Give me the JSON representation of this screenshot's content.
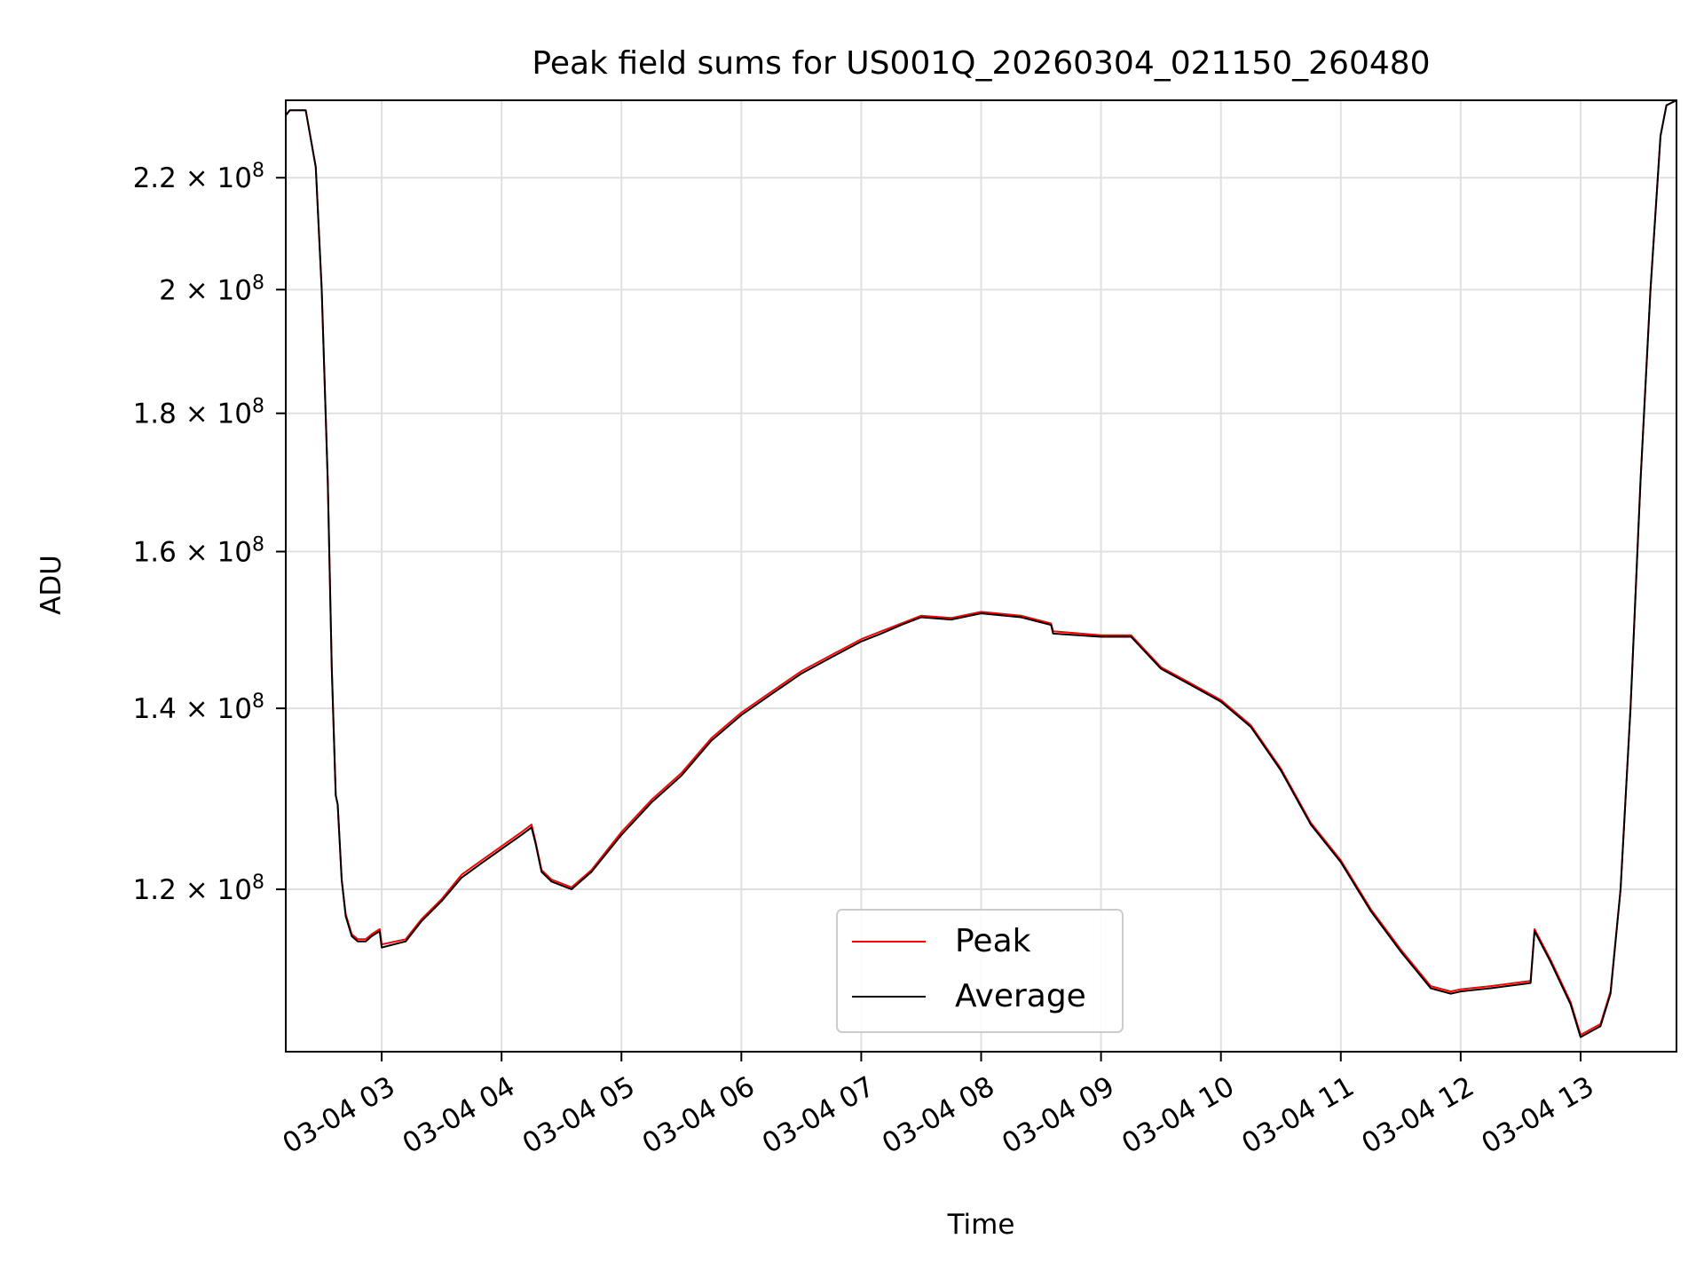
{
  "chart_data": {
    "type": "line",
    "title": "Peak field sums for US001Q_20260304_021150_260480",
    "xlabel": "Time",
    "ylabel": "ADU",
    "y_scale": "log",
    "grid": true,
    "legend_position": "lower center",
    "xlim": [
      "2026-03-04 02:12",
      "2026-03-04 13:48"
    ],
    "ylim": [
      104500000,
      235000000
    ],
    "x_ticks": [
      {
        "t": "2026-03-04 03:00",
        "label": "03-04 03"
      },
      {
        "t": "2026-03-04 04:00",
        "label": "03-04 04"
      },
      {
        "t": "2026-03-04 05:00",
        "label": "03-04 05"
      },
      {
        "t": "2026-03-04 06:00",
        "label": "03-04 06"
      },
      {
        "t": "2026-03-04 07:00",
        "label": "03-04 07"
      },
      {
        "t": "2026-03-04 08:00",
        "label": "03-04 08"
      },
      {
        "t": "2026-03-04 09:00",
        "label": "03-04 09"
      },
      {
        "t": "2026-03-04 10:00",
        "label": "03-04 10"
      },
      {
        "t": "2026-03-04 11:00",
        "label": "03-04 11"
      },
      {
        "t": "2026-03-04 12:00",
        "label": "03-04 12"
      },
      {
        "t": "2026-03-04 13:00",
        "label": "03-04 13"
      }
    ],
    "y_ticks": [
      {
        "value": 120000000,
        "mantissa": "1.2"
      },
      {
        "value": 140000000,
        "mantissa": "1.4"
      },
      {
        "value": 160000000,
        "mantissa": "1.6"
      },
      {
        "value": 180000000,
        "mantissa": "1.8"
      },
      {
        "value": 200000000,
        "mantissa": "2"
      },
      {
        "value": 220000000,
        "mantissa": "2.2"
      }
    ],
    "y_tick_base": "10",
    "y_tick_exponent": "8",
    "series": [
      {
        "name": "Peak",
        "color": "#ff0000",
        "x": [
          "2026-03-04 02:12",
          "2026-03-04 02:14",
          "2026-03-04 02:22",
          "2026-03-04 02:27",
          "2026-03-04 02:30",
          "2026-03-04 02:33",
          "2026-03-04 02:35",
          "2026-03-04 02:37",
          "2026-03-04 02:38",
          "2026-03-04 02:40",
          "2026-03-04 02:42",
          "2026-03-04 02:45",
          "2026-03-04 02:48",
          "2026-03-04 02:52",
          "2026-03-04 02:55",
          "2026-03-04 02:59",
          "2026-03-04 03:00",
          "2026-03-04 03:12",
          "2026-03-04 03:20",
          "2026-03-04 03:30",
          "2026-03-04 03:40",
          "2026-03-04 03:50",
          "2026-03-04 04:00",
          "2026-03-04 04:10",
          "2026-03-04 04:15",
          "2026-03-04 04:17",
          "2026-03-04 04:20",
          "2026-03-04 04:25",
          "2026-03-04 04:35",
          "2026-03-04 04:45",
          "2026-03-04 05:00",
          "2026-03-04 05:15",
          "2026-03-04 05:30",
          "2026-03-04 05:45",
          "2026-03-04 06:00",
          "2026-03-04 06:15",
          "2026-03-04 06:30",
          "2026-03-04 06:45",
          "2026-03-04 07:00",
          "2026-03-04 07:10",
          "2026-03-04 07:20",
          "2026-03-04 07:30",
          "2026-03-04 07:45",
          "2026-03-04 08:00",
          "2026-03-04 08:20",
          "2026-03-04 08:35",
          "2026-03-04 08:36",
          "2026-03-04 09:00",
          "2026-03-04 09:15",
          "2026-03-04 09:30",
          "2026-03-04 09:45",
          "2026-03-04 10:00",
          "2026-03-04 10:15",
          "2026-03-04 10:30",
          "2026-03-04 10:45",
          "2026-03-04 11:00",
          "2026-03-04 11:15",
          "2026-03-04 11:30",
          "2026-03-04 11:45",
          "2026-03-04 11:55",
          "2026-03-04 12:00",
          "2026-03-04 12:15",
          "2026-03-04 12:35",
          "2026-03-04 12:37",
          "2026-03-04 12:45",
          "2026-03-04 12:55",
          "2026-03-04 13:00",
          "2026-03-04 13:05",
          "2026-03-04 13:10",
          "2026-03-04 13:15",
          "2026-03-04 13:20",
          "2026-03-04 13:25",
          "2026-03-04 13:30",
          "2026-03-04 13:35",
          "2026-03-04 13:40",
          "2026-03-04 13:43",
          "2026-03-04 13:48"
        ],
        "y": [
          232000000,
          233000000,
          233000000,
          222000000,
          200000000,
          170000000,
          145000000,
          130000000,
          129000000,
          121000000,
          117500000,
          115500000,
          115000000,
          115000000,
          115500000,
          116000000,
          114500000,
          115000000,
          117000000,
          119000000,
          121500000,
          123000000,
          124500000,
          126000000,
          126800000,
          125000000,
          122000000,
          121000000,
          120200000,
          122000000,
          126000000,
          129500000,
          132500000,
          136500000,
          139500000,
          142000000,
          144500000,
          146500000,
          148500000,
          149500000,
          150500000,
          151500000,
          151200000,
          152000000,
          151500000,
          150500000,
          149500000,
          149000000,
          149000000,
          145000000,
          143000000,
          141000000,
          138000000,
          133000000,
          127000000,
          123000000,
          118000000,
          114000000,
          110500000,
          110000000,
          110200000,
          110500000,
          111000000,
          116000000,
          113000000,
          109000000,
          106000000,
          106500000,
          107000000,
          110000000,
          120000000,
          140000000,
          170000000,
          200000000,
          228000000,
          234000000,
          235000000
        ]
      },
      {
        "name": "Average",
        "color": "#000000",
        "x": [
          "2026-03-04 02:12",
          "2026-03-04 02:14",
          "2026-03-04 02:22",
          "2026-03-04 02:27",
          "2026-03-04 02:30",
          "2026-03-04 02:33",
          "2026-03-04 02:35",
          "2026-03-04 02:37",
          "2026-03-04 02:38",
          "2026-03-04 02:40",
          "2026-03-04 02:42",
          "2026-03-04 02:45",
          "2026-03-04 02:48",
          "2026-03-04 02:52",
          "2026-03-04 02:55",
          "2026-03-04 02:59",
          "2026-03-04 03:00",
          "2026-03-04 03:12",
          "2026-03-04 03:20",
          "2026-03-04 03:30",
          "2026-03-04 03:40",
          "2026-03-04 03:50",
          "2026-03-04 04:00",
          "2026-03-04 04:10",
          "2026-03-04 04:15",
          "2026-03-04 04:17",
          "2026-03-04 04:20",
          "2026-03-04 04:25",
          "2026-03-04 04:35",
          "2026-03-04 04:45",
          "2026-03-04 05:00",
          "2026-03-04 05:15",
          "2026-03-04 05:30",
          "2026-03-04 05:45",
          "2026-03-04 06:00",
          "2026-03-04 06:15",
          "2026-03-04 06:30",
          "2026-03-04 06:45",
          "2026-03-04 07:00",
          "2026-03-04 07:10",
          "2026-03-04 07:20",
          "2026-03-04 07:30",
          "2026-03-04 07:45",
          "2026-03-04 08:00",
          "2026-03-04 08:20",
          "2026-03-04 08:35",
          "2026-03-04 08:36",
          "2026-03-04 09:00",
          "2026-03-04 09:15",
          "2026-03-04 09:30",
          "2026-03-04 09:45",
          "2026-03-04 10:00",
          "2026-03-04 10:15",
          "2026-03-04 10:30",
          "2026-03-04 10:45",
          "2026-03-04 11:00",
          "2026-03-04 11:15",
          "2026-03-04 11:30",
          "2026-03-04 11:45",
          "2026-03-04 11:55",
          "2026-03-04 12:00",
          "2026-03-04 12:15",
          "2026-03-04 12:35",
          "2026-03-04 12:37",
          "2026-03-04 12:45",
          "2026-03-04 12:55",
          "2026-03-04 13:00",
          "2026-03-04 13:05",
          "2026-03-04 13:10",
          "2026-03-04 13:15",
          "2026-03-04 13:20",
          "2026-03-04 13:25",
          "2026-03-04 13:30",
          "2026-03-04 13:35",
          "2026-03-04 13:40",
          "2026-03-04 13:43",
          "2026-03-04 13:48"
        ],
        "y": [
          232000000,
          233000000,
          233000000,
          222000000,
          200000000,
          170000000,
          145000000,
          130000000,
          129000000,
          121000000,
          117300000,
          115300000,
          114800000,
          114800000,
          115300000,
          115800000,
          114200000,
          114800000,
          116800000,
          118800000,
          121200000,
          122700000,
          124200000,
          125700000,
          126500000,
          124800000,
          121800000,
          120800000,
          120000000,
          121800000,
          125700000,
          129200000,
          132200000,
          136200000,
          139200000,
          141700000,
          144200000,
          146200000,
          148200000,
          149200000,
          150300000,
          151300000,
          151000000,
          151800000,
          151300000,
          150300000,
          149200000,
          148800000,
          148800000,
          144800000,
          142800000,
          140800000,
          137800000,
          132800000,
          126800000,
          122800000,
          117800000,
          113800000,
          110300000,
          109800000,
          110000000,
          110300000,
          110800000,
          115800000,
          112800000,
          108800000,
          105800000,
          106300000,
          106800000,
          109800000,
          120000000,
          140000000,
          170000000,
          200000000,
          228000000,
          234000000,
          235000000
        ]
      }
    ]
  }
}
